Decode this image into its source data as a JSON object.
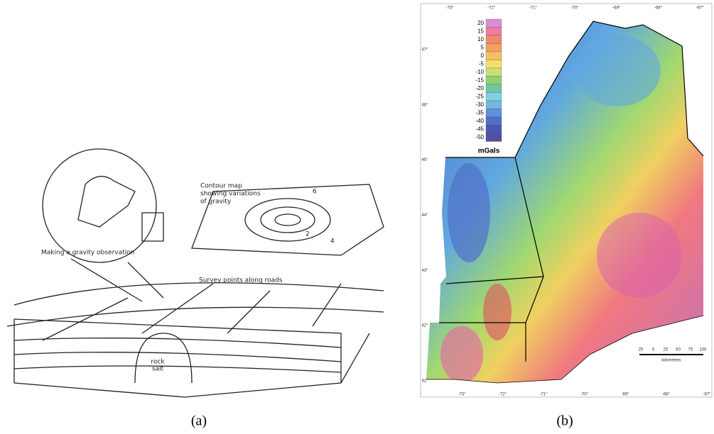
{
  "panel_a": {
    "caption": "(a)",
    "contour_map": [
      "Contour map",
      "showing variations",
      "of gravity"
    ],
    "observation": "Making a gravity observation",
    "survey": "Survey points along roads",
    "rock_salt": [
      "rock",
      "salt"
    ],
    "contour_labels": [
      "6",
      "2",
      "4"
    ]
  },
  "panel_b": {
    "caption": "(b)",
    "colorbar": {
      "labels": [
        "20",
        "15",
        "10",
        "5",
        "0",
        "-5",
        "-10",
        "-15",
        "-20",
        "-25",
        "-30",
        "-35",
        "-40",
        "-45",
        "-50"
      ],
      "colors": [
        "#d98fd0",
        "#f07aa0",
        "#f08870",
        "#f4a060",
        "#f6c060",
        "#f0e070",
        "#c8e070",
        "#90d070",
        "#70c8a0",
        "#80d0e0",
        "#70b8e0",
        "#6090d8",
        "#5070c8",
        "#4858b0",
        "#5050a0"
      ],
      "unit": "mGals"
    },
    "lon_top": [
      "-73°",
      "-72°",
      "-71°",
      "-70°",
      "-69°",
      "-68°",
      "-67°"
    ],
    "lon_bottom": [
      "-73°",
      "-72°",
      "-71°",
      "-70°",
      "-69°",
      "-68°",
      "-67°"
    ],
    "lat": [
      "47°",
      "46°",
      "45°",
      "44°",
      "43°",
      "42°",
      "41°"
    ],
    "scale": {
      "labels": [
        "25",
        "0",
        "25",
        "50",
        "75",
        "100"
      ],
      "unit": "kilometres"
    }
  }
}
